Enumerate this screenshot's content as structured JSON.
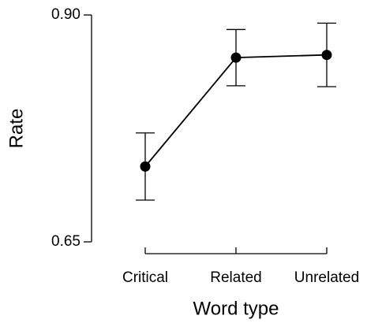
{
  "chart_data": {
    "type": "line",
    "categories": [
      "Critical",
      "Related",
      "Unrelated"
    ],
    "series": [
      {
        "values": [
          0.733,
          0.853,
          0.856
        ],
        "errors": [
          0.037,
          0.031,
          0.035
        ],
        "color": "#000000"
      }
    ],
    "ylim": [
      0.65,
      0.9
    ],
    "yticks": [
      0.65,
      {
        "value": 0.9,
        "label": "0.90"
      }
    ],
    "xlabel": "Word type",
    "ylabel": "Rate"
  }
}
